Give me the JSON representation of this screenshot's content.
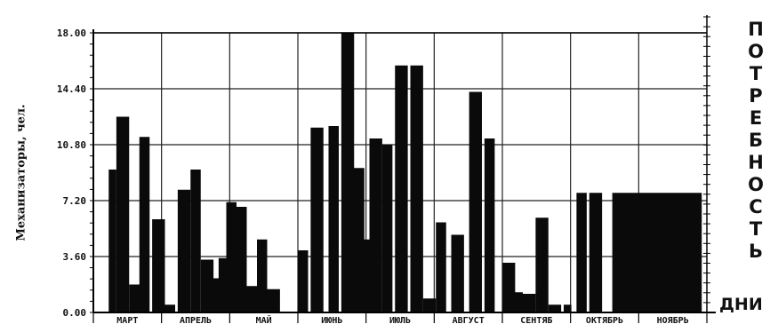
{
  "chart_data": {
    "type": "bar",
    "ylabel": "Механизаторы, чел.",
    "xlabel": "ДНИ",
    "right_label": "ПОТРЕБНОСТЬ",
    "ylim": [
      0,
      18
    ],
    "yticks": [
      0,
      3.6,
      7.2,
      10.8,
      14.4,
      18
    ],
    "ytick_labels": [
      "0.00",
      "3.60",
      "7.20",
      "10.80",
      "14.40",
      "18.00"
    ],
    "grid": true,
    "months": [
      "МАРТ",
      "АПРЕЛЬ",
      "МАЙ",
      "ИЮНЬ",
      "ИЮЛЬ",
      "АВГУСТ",
      "СЕНТЯБ",
      "ОКТЯБРЬ",
      "НОЯБРЬ"
    ],
    "x": [
      6,
      9,
      14,
      18,
      23,
      27,
      33,
      38,
      42,
      46,
      49,
      52,
      56,
      60,
      64,
      68,
      80,
      85,
      92,
      97,
      101,
      105,
      108,
      113,
      118,
      124,
      129,
      134,
      140,
      147,
      153,
      160,
      164,
      168,
      173,
      178,
      184,
      189,
      194,
      203
    ],
    "widths": [
      3,
      5,
      5,
      4,
      5,
      5,
      5,
      4,
      5,
      4,
      3,
      4,
      4,
      4,
      4,
      5,
      4,
      5,
      4,
      5,
      5,
      4,
      5,
      4,
      5,
      5,
      5,
      4,
      5,
      5,
      4,
      5,
      4,
      5,
      5,
      5,
      3,
      4,
      5,
      35
    ],
    "values": [
      9.2,
      12.6,
      1.8,
      11.3,
      6.0,
      0.5,
      7.9,
      9.2,
      3.4,
      2.2,
      3.5,
      7.1,
      6.8,
      1.7,
      4.7,
      1.5,
      4.0,
      11.9,
      12.0,
      18.0,
      9.3,
      4.7,
      11.2,
      10.8,
      15.9,
      15.9,
      0.9,
      5.8,
      5.0,
      14.2,
      11.2,
      3.2,
      1.3,
      1.2,
      6.1,
      0.5,
      0.5,
      7.7,
      7.7,
      7.7
    ]
  }
}
